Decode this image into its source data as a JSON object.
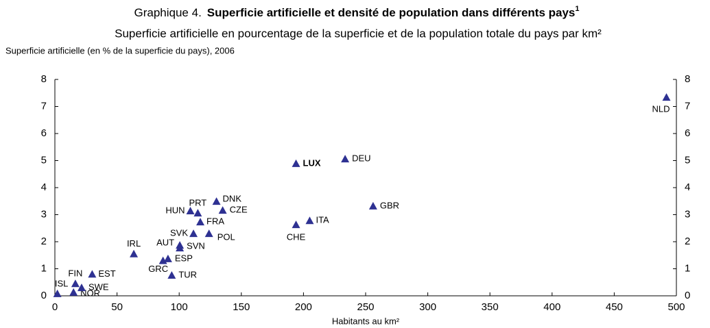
{
  "chart_data": {
    "type": "scatter",
    "title_prefix": "Graphique 4.",
    "title": "Superficie artificielle et densité de population dans différents pays",
    "title_note": "1",
    "subtitle": "Superficie artificielle en pourcentage de la superficie et de la population totale du pays par km²",
    "ylabel": "Superficie artificielle (en % de la superficie du pays), 2006",
    "xlabel": "Habitants au km²",
    "color": "#2e3192",
    "categories": [
      "ISL",
      "NOR",
      "FIN",
      "SWE",
      "EST",
      "IRL",
      "GRC",
      "ESP",
      "TUR",
      "AUT",
      "SVN",
      "SVK",
      "POL",
      "FRA",
      "HUN",
      "PRT",
      "CZE",
      "DNK",
      "CHE",
      "ITA",
      "LUX",
      "DEU",
      "GBR",
      "NLD"
    ],
    "x": [
      2,
      15,
      16.5,
      21.5,
      30,
      63.5,
      87,
      91,
      94,
      100.5,
      100.5,
      111.5,
      124,
      117,
      109,
      115,
      135,
      130,
      194,
      205,
      194,
      233.5,
      256,
      492
    ],
    "values": [
      0.08,
      0.13,
      0.45,
      0.3,
      0.8,
      1.55,
      1.3,
      1.37,
      0.76,
      1.87,
      1.77,
      2.3,
      2.3,
      2.73,
      3.14,
      3.06,
      3.16,
      3.49,
      2.63,
      2.78,
      4.89,
      5.06,
      3.32,
      7.34
    ],
    "xlim": [
      0,
      500
    ],
    "xticks": [
      0,
      50,
      100,
      150,
      200,
      250,
      300,
      350,
      400,
      450,
      500
    ],
    "ylim": [
      0,
      8
    ],
    "yticks": [
      0,
      1,
      2,
      3,
      4,
      5,
      6,
      7,
      8
    ],
    "y2lim": [
      0,
      8
    ],
    "y2ticks": [
      0,
      1,
      2,
      3,
      4,
      5,
      6,
      7,
      8
    ]
  }
}
